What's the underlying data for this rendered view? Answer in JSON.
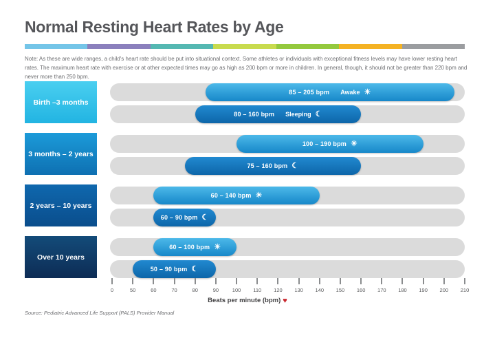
{
  "page": {
    "title": "Normal Resting Heart Rates by Age",
    "note": "Note: As these are wide ranges, a child's heart rate should be put into situational context. Some athletes or individuals with exceptional fitness levels may have lower resting heart rates. The maximum heart rate with exercise or at other expected times may go as high as 200 bpm or more in children. In general, though, it should not be greater than 220 bpm and never more than 250 bpm.",
    "axis_label": "Beats per minute (bpm)",
    "source": "Source: Pediatric Advanced Life Support (PALS) Provider Manual"
  },
  "icons": {
    "sun": "☀",
    "moon": "☾",
    "heart": "♥"
  },
  "colors": {
    "title": "#55565A",
    "note": "#6D6E71",
    "track": "#DBDBDB",
    "tick": "#8A8C8E",
    "heart": "#C9252C",
    "awake_bar_top": "#4CB9E9",
    "awake_bar_bottom": "#1787C9",
    "sleep_bar_top": "#2189D0",
    "sleep_bar_bottom": "#0D66A9",
    "stripe_segments": [
      "#74C5E8",
      "#8B80BD",
      "#55B8B2",
      "#C8DB4E",
      "#94C93D",
      "#F4B223",
      "#9B9DA0"
    ]
  },
  "chart_data": {
    "type": "bar",
    "orientation": "horizontal",
    "title": "Normal Resting Heart Rates by Age",
    "xlabel": "Beats per minute (bpm)",
    "axis_ticks": [
      0,
      50,
      60,
      70,
      80,
      90,
      100,
      110,
      120,
      130,
      140,
      150,
      160,
      170,
      180,
      190,
      200,
      210
    ],
    "axis_scale_note": "non-linear: 0 then 50-210 in equal 10 bpm steps, all ticks evenly spaced",
    "grid": false,
    "groups": [
      {
        "age_label": "Birth –3 months",
        "box_gradient": [
          "#4ACFF0",
          "#22B4E2"
        ],
        "bars": [
          {
            "state": "awake",
            "min_bpm": 85,
            "max_bpm": 205,
            "range_label": "85 – 205 bpm",
            "state_label": "Awake",
            "icon": "sun"
          },
          {
            "state": "sleeping",
            "min_bpm": 80,
            "max_bpm": 160,
            "range_label": "80 – 160 bpm",
            "state_label": "Sleeping",
            "icon": "moon"
          }
        ]
      },
      {
        "age_label": "3 months – 2 years",
        "box_gradient": [
          "#1C9BD9",
          "#0E70B2"
        ],
        "bars": [
          {
            "state": "awake",
            "min_bpm": 100,
            "max_bpm": 190,
            "range_label": "100 – 190 bpm",
            "state_label": "",
            "icon": "sun"
          },
          {
            "state": "sleeping",
            "min_bpm": 75,
            "max_bpm": 160,
            "range_label": "75 – 160 bpm",
            "state_label": "",
            "icon": "moon"
          }
        ]
      },
      {
        "age_label": "2 years – 10 years",
        "box_gradient": [
          "#0F68AE",
          "#0A4D8C"
        ],
        "bars": [
          {
            "state": "awake",
            "min_bpm": 60,
            "max_bpm": 140,
            "range_label": "60 – 140 bpm",
            "state_label": "",
            "icon": "sun"
          },
          {
            "state": "sleeping",
            "min_bpm": 60,
            "max_bpm": 90,
            "range_label": "60 – 90 bpm",
            "state_label": "",
            "icon": "moon"
          }
        ]
      },
      {
        "age_label": "Over 10 years",
        "box_gradient": [
          "#134B79",
          "#0D2C55"
        ],
        "bars": [
          {
            "state": "awake",
            "min_bpm": 60,
            "max_bpm": 100,
            "range_label": "60 – 100 bpm",
            "state_label": "",
            "icon": "sun"
          },
          {
            "state": "sleeping",
            "min_bpm": 50,
            "max_bpm": 90,
            "range_label": "50 – 90 bpm",
            "state_label": "",
            "icon": "moon"
          }
        ]
      }
    ]
  }
}
